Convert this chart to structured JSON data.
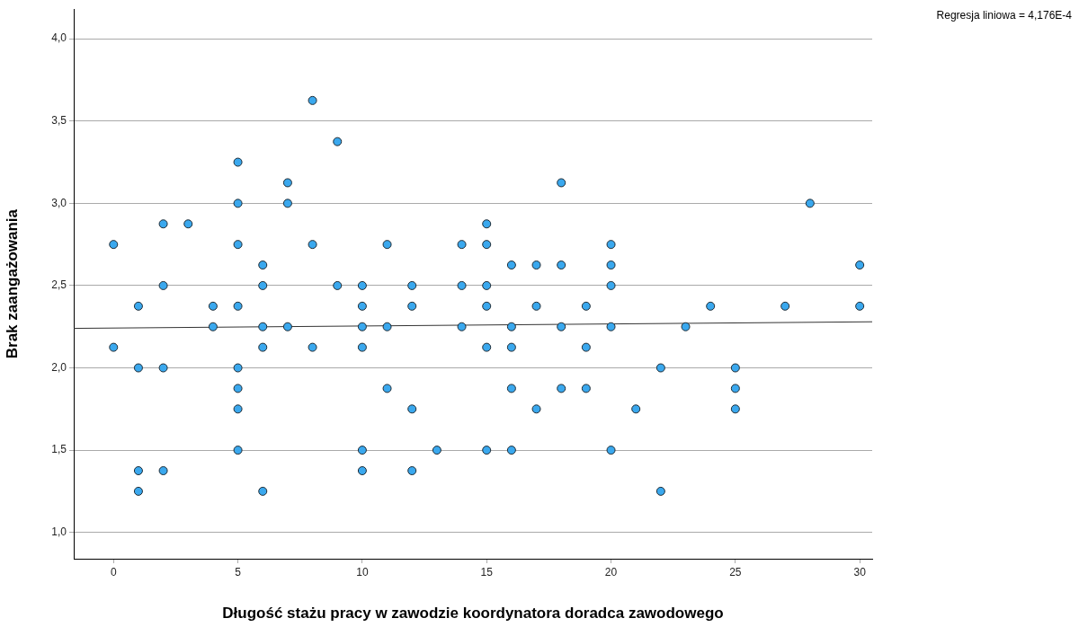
{
  "chart_data": {
    "type": "scatter",
    "xlabel": "Długość stażu pracy w zawodzie koordynatora doradca zawodowego",
    "ylabel": "Brak zaangażowania",
    "annotations": [
      "Regresja liniowa = 4,176E-4"
    ],
    "xlim": [
      -1.6,
      30.5
    ],
    "ylim": [
      0.84,
      4.18
    ],
    "xticks": [
      0,
      5,
      10,
      15,
      20,
      25,
      30
    ],
    "yticks": [
      {
        "value": 1,
        "label": "1,0"
      },
      {
        "value": 1.5,
        "label": "1,5"
      },
      {
        "value": 2,
        "label": "2,0"
      },
      {
        "value": 2.5,
        "label": "2,5"
      },
      {
        "value": 3,
        "label": "3,0"
      },
      {
        "value": 3.5,
        "label": "3,5"
      },
      {
        "value": 4,
        "label": "4,0"
      }
    ],
    "grid": "y",
    "legend": false,
    "marker": "circle",
    "series": [
      {
        "color": "#3aa8ee",
        "x": [
          0,
          0,
          1,
          1,
          1,
          1,
          2,
          2,
          2,
          2,
          3,
          4,
          4,
          5,
          5,
          5,
          5,
          5,
          5,
          5,
          5,
          6,
          6,
          6,
          6,
          6,
          7,
          7,
          7,
          8,
          8,
          8,
          9,
          9,
          10,
          10,
          10,
          10,
          10,
          10,
          11,
          11,
          11,
          12,
          12,
          12,
          12,
          13,
          14,
          14,
          14,
          15,
          15,
          15,
          15,
          15,
          15,
          16,
          16,
          16,
          16,
          16,
          17,
          17,
          17,
          18,
          18,
          18,
          18,
          19,
          19,
          19,
          20,
          20,
          20,
          20,
          20,
          21,
          22,
          22,
          23,
          24,
          25,
          25,
          25,
          27,
          28,
          30,
          30
        ],
        "values": [
          2.75,
          2.125,
          2.375,
          2.0,
          1.375,
          1.25,
          2.875,
          2.5,
          2.0,
          1.375,
          2.875,
          2.375,
          2.25,
          3.25,
          3.0,
          2.75,
          2.375,
          2.0,
          1.875,
          1.75,
          1.5,
          2.625,
          2.5,
          2.25,
          2.125,
          1.25,
          3.125,
          3.0,
          2.25,
          3.625,
          2.75,
          2.125,
          3.375,
          2.5,
          2.5,
          2.375,
          2.25,
          2.125,
          1.5,
          1.375,
          2.75,
          2.25,
          1.875,
          2.5,
          2.375,
          1.75,
          1.375,
          1.5,
          2.75,
          2.5,
          2.25,
          2.875,
          2.75,
          2.5,
          2.375,
          2.125,
          1.5,
          2.625,
          2.25,
          2.125,
          1.875,
          1.5,
          2.625,
          2.375,
          1.75,
          3.125,
          2.625,
          2.25,
          1.875,
          2.375,
          2.125,
          1.875,
          2.75,
          2.625,
          2.5,
          2.25,
          1.5,
          1.75,
          2.0,
          1.25,
          2.25,
          2.375,
          2.0,
          1.875,
          1.75,
          2.375,
          3.0,
          2.625,
          2.375
        ]
      },
      {
        "type": "line",
        "marker": "none",
        "color": "#333333",
        "x": [
          -1.6,
          30.5
        ],
        "values": [
          2.24,
          2.28
        ]
      }
    ]
  }
}
